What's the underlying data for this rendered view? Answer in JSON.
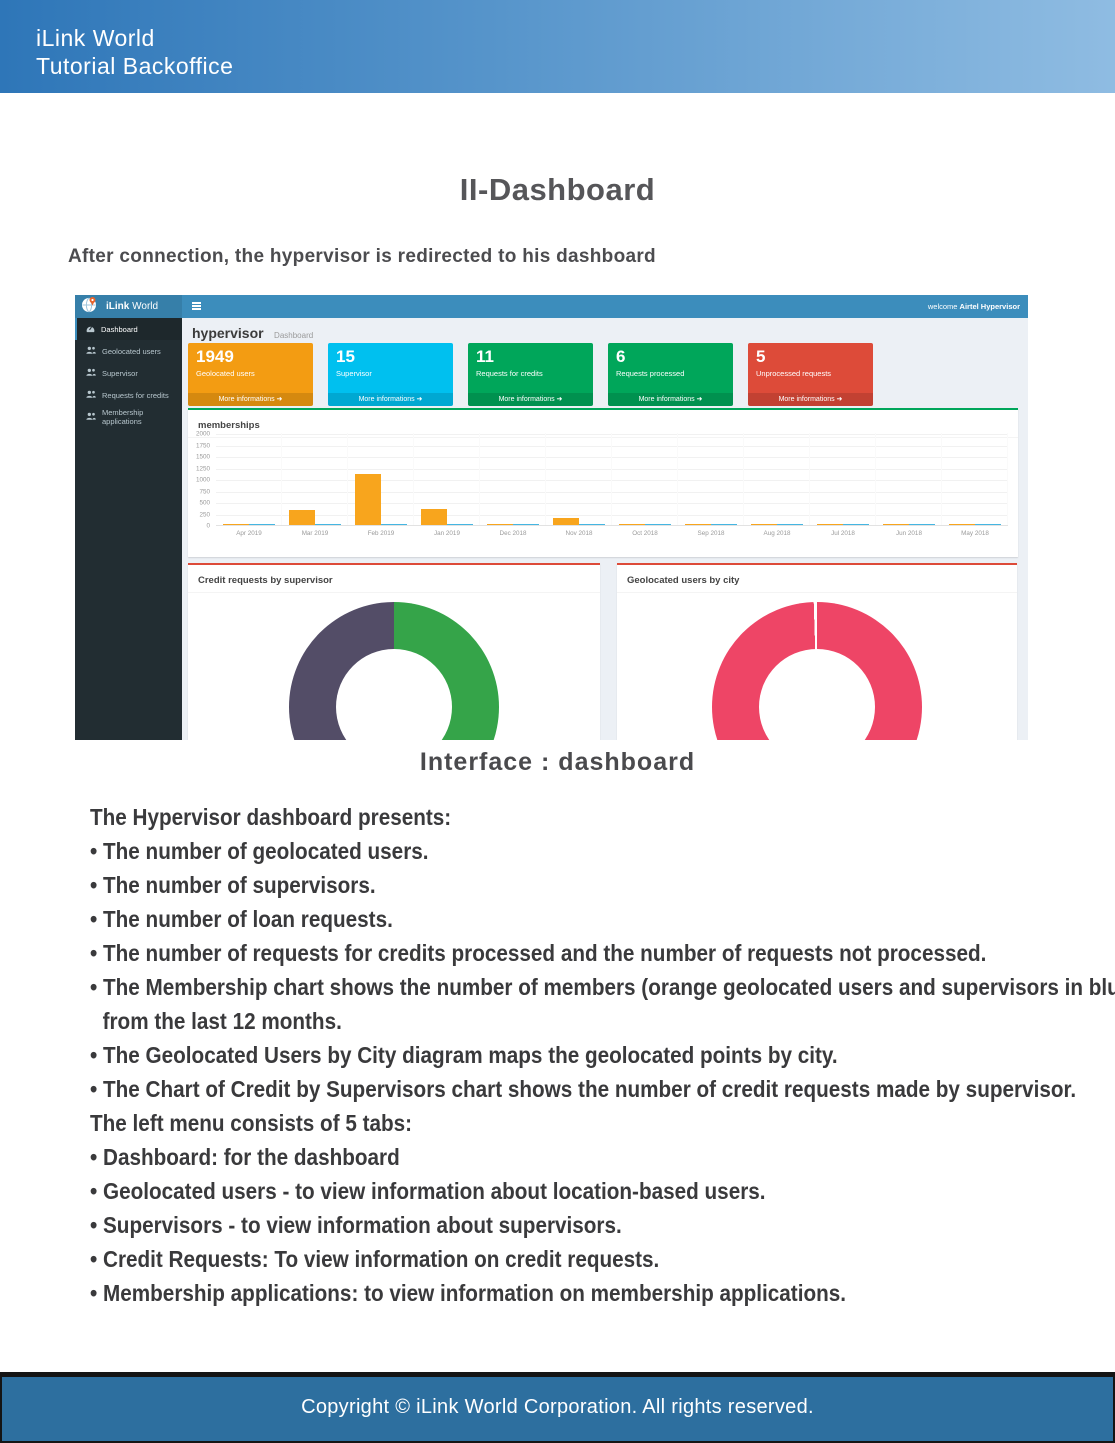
{
  "page": {
    "header": {
      "line1": "iLink World",
      "line2": "Tutorial Backoffice"
    },
    "title": "II-Dashboard",
    "intro": "After connection, the hypervisor is redirected to his dashboard",
    "caption": "Interface : dashboard",
    "footer": "Copyright © iLink World Corporation. All rights reserved."
  },
  "body": {
    "lines": [
      {
        "bullet": false,
        "indent": false,
        "text": "The Hypervisor dashboard presents:"
      },
      {
        "bullet": true,
        "indent": false,
        "text": "The number of geolocated users."
      },
      {
        "bullet": true,
        "indent": false,
        "text": "The number of supervisors."
      },
      {
        "bullet": true,
        "indent": false,
        "text": "The number of loan requests."
      },
      {
        "bullet": true,
        "indent": false,
        "text": "The number of requests for credits processed and the number of requests not processed."
      },
      {
        "bullet": true,
        "indent": false,
        "text": "The Membership chart shows the number of members (orange geolocated users and supervisors in blue)"
      },
      {
        "bullet": false,
        "indent": true,
        "text": "from the last 12 months."
      },
      {
        "bullet": true,
        "indent": false,
        "text": "The Geolocated Users by City diagram maps the geolocated points by city."
      },
      {
        "bullet": true,
        "indent": false,
        "text": "The Chart of Credit by Supervisors chart shows the number of credit requests made by supervisor."
      },
      {
        "bullet": false,
        "indent": false,
        "text": "The left menu consists of 5 tabs:"
      },
      {
        "bullet": true,
        "indent": false,
        "text": "Dashboard: for the dashboard"
      },
      {
        "bullet": true,
        "indent": false,
        "text": "Geolocated users - to view information about location-based users."
      },
      {
        "bullet": true,
        "indent": false,
        "text": "Supervisors - to view information about supervisors."
      },
      {
        "bullet": true,
        "indent": false,
        "text": "Credit Requests: To view information on credit requests."
      },
      {
        "bullet": true,
        "indent": false,
        "text": "Membership applications: to view information on membership applications."
      }
    ]
  },
  "dashboard": {
    "brand_bold": "iLink",
    "brand_regular": "World",
    "welcome_prefix": "welcome",
    "welcome_user": "Airtel Hypervisor",
    "page_heading": "hypervisor",
    "breadcrumb": "Dashboard",
    "more_label": "More informations",
    "more_icon": "➜",
    "sidebar_items": [
      {
        "label": "Dashboard",
        "icon": "dashboard-icon",
        "active": true
      },
      {
        "label": "Geolocated users",
        "icon": "users-icon",
        "active": false
      },
      {
        "label": "Supervisor",
        "icon": "users-icon",
        "active": false
      },
      {
        "label": "Requests for credits",
        "icon": "users-icon",
        "active": false
      },
      {
        "label": "Membership applications",
        "icon": "users-icon",
        "active": false
      }
    ],
    "stat_cards": [
      {
        "value": "1949",
        "label": "Geolocated users",
        "bg": "#f39c12"
      },
      {
        "value": "15",
        "label": "Supervisor",
        "bg": "#00c0ef"
      },
      {
        "value": "11",
        "label": "Requests for credits",
        "bg": "#00a65a"
      },
      {
        "value": "6",
        "label": "Requests processed",
        "bg": "#00a65a"
      },
      {
        "value": "5",
        "label": "Unprocessed requests",
        "bg": "#dd4b39"
      }
    ],
    "colors": {
      "navbar": "#3c8dbc",
      "logo_block": "#367fa9",
      "sidebar": "#222d32",
      "content_bg": "#ecf0f5",
      "membership_accent": "#00a65a",
      "donut_accent": "#dd4b39"
    }
  },
  "chart_data": [
    {
      "type": "bar",
      "title": "memberships",
      "categories": [
        "Apr 2019",
        "Mar 2019",
        "Feb 2019",
        "Jan 2019",
        "Dec 2018",
        "Nov 2018",
        "Oct 2018",
        "Sep 2018",
        "Aug 2018",
        "Jul 2018",
        "Jun 2018",
        "May 2018"
      ],
      "series": [
        {
          "name": "geolocated users",
          "color": "#f8a51d",
          "values": [
            15,
            330,
            1100,
            350,
            20,
            150,
            10,
            10,
            10,
            10,
            10,
            10
          ]
        },
        {
          "name": "supervisors",
          "color": "#45b6e2",
          "values": [
            8,
            10,
            15,
            30,
            10,
            8,
            8,
            8,
            8,
            8,
            8,
            8
          ]
        }
      ],
      "ylim": [
        0,
        2000
      ],
      "yticks": [
        0,
        250,
        500,
        750,
        1000,
        1250,
        1500,
        1750,
        2000
      ],
      "grid": true,
      "legend": "none"
    },
    {
      "type": "pie",
      "title": "Credit requests by supervisor",
      "donut": true,
      "slices": [
        {
          "pct": 51,
          "color": "#35a449"
        },
        {
          "pct": 49,
          "color": "#534d67"
        }
      ]
    },
    {
      "type": "pie",
      "title": "Geolocated users by city",
      "donut": true,
      "slices": [
        {
          "pct": 99.5,
          "color": "#ee4566"
        },
        {
          "pct": 0.5,
          "color": "#ffffff"
        }
      ]
    }
  ]
}
